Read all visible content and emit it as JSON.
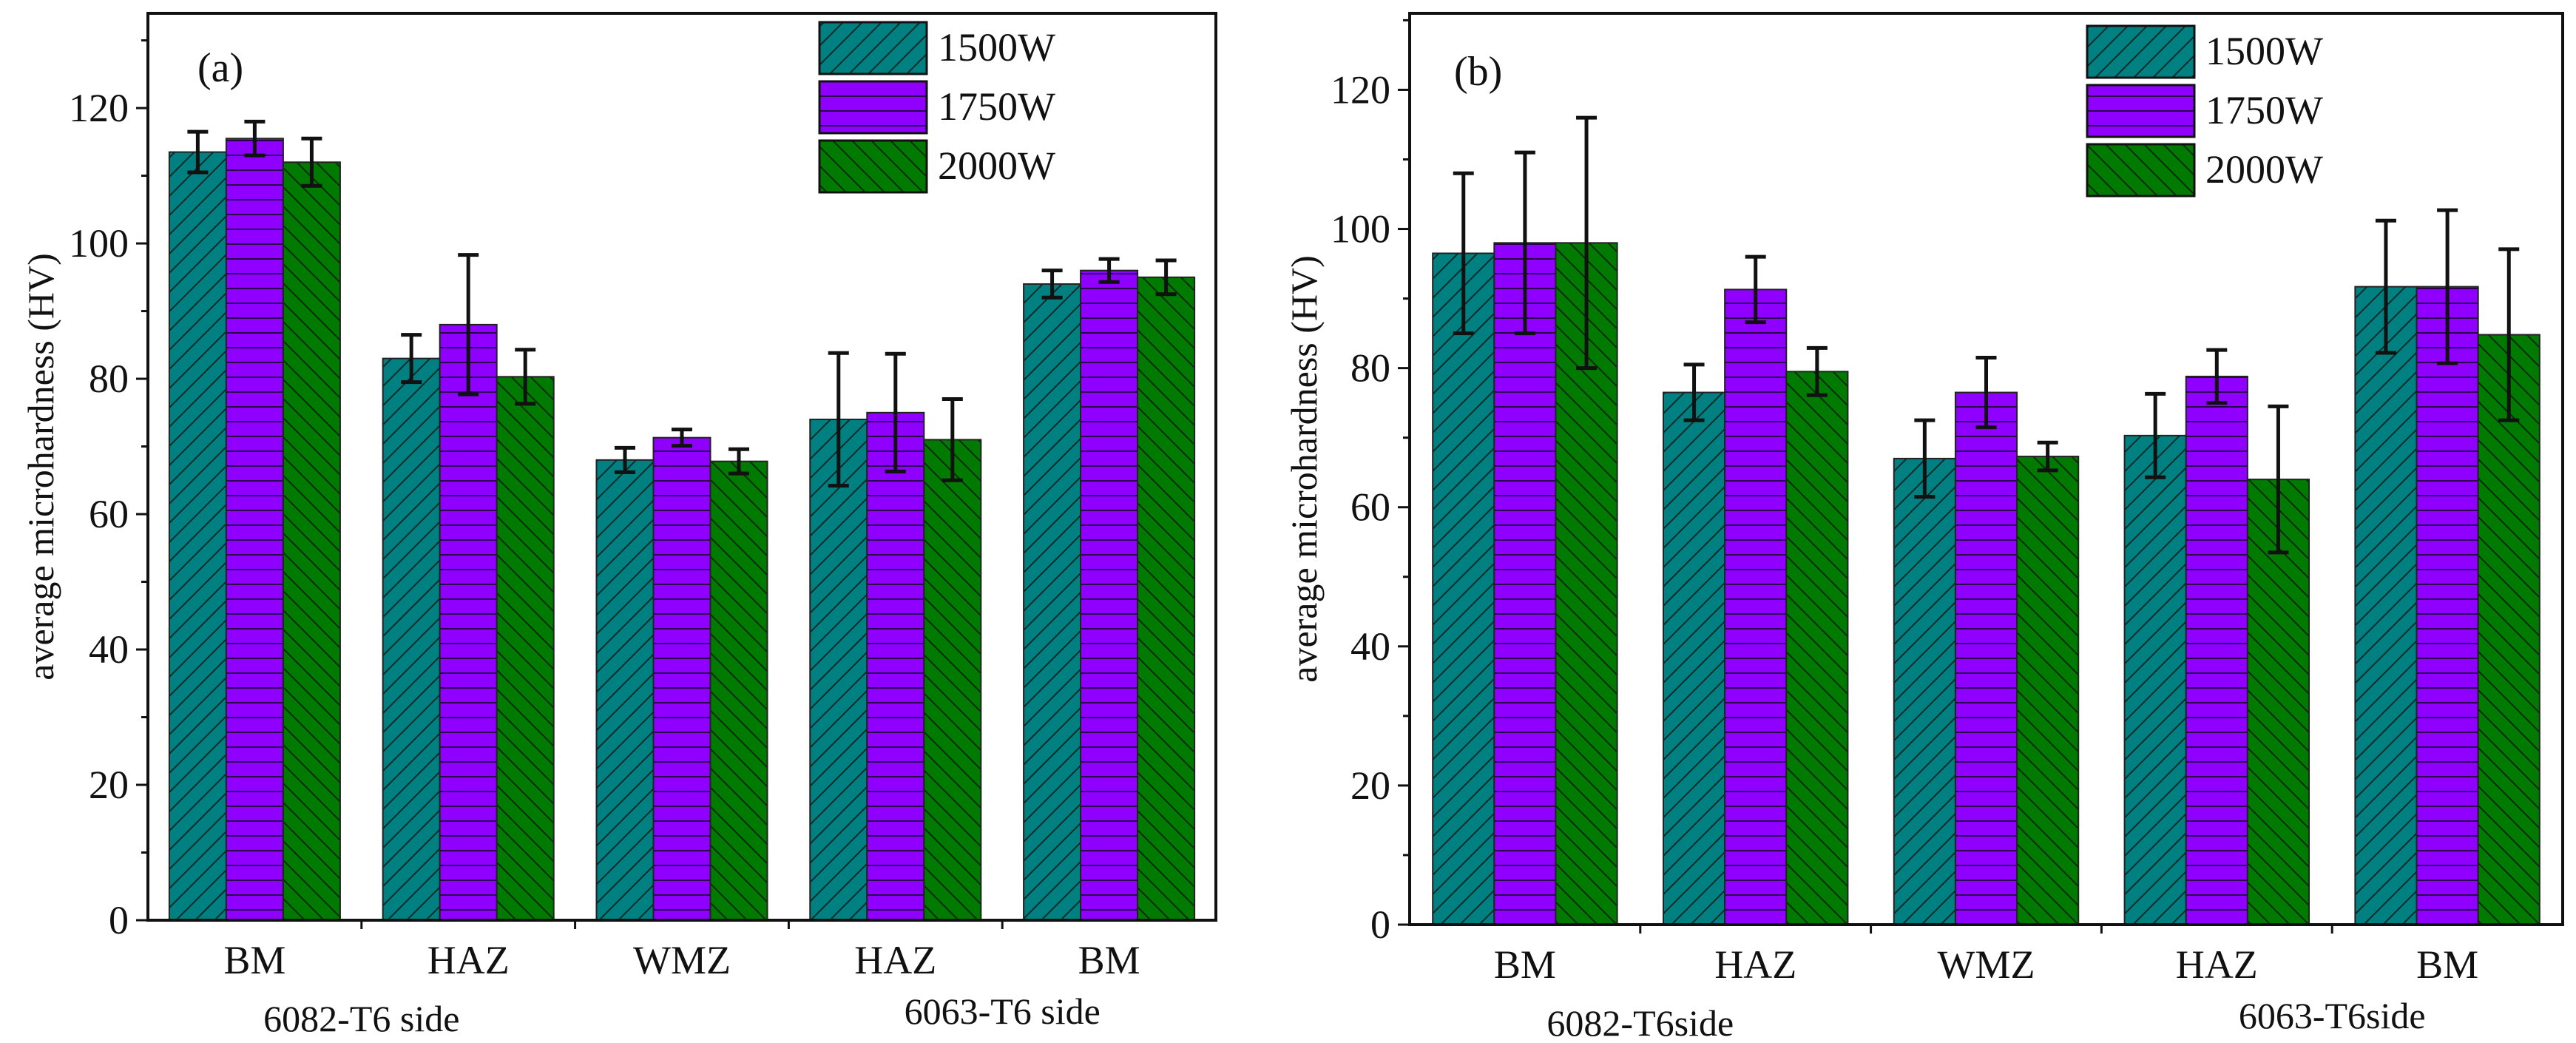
{
  "chart_data": [
    {
      "type": "bar",
      "panel_label": "(a)",
      "ylabel": "average microhardness (HV)",
      "ylim": [
        0,
        134
      ],
      "yticks": [
        0,
        20,
        40,
        60,
        80,
        100,
        120
      ],
      "categories": [
        "BM",
        "HAZ",
        "WMZ",
        "HAZ",
        "BM"
      ],
      "side_labels": [
        "6082-T6 side",
        "6063-T6 side"
      ],
      "legend_position": "top-right",
      "series": [
        {
          "name": "1500W",
          "color": "#008080",
          "hatch": "forward-diagonal",
          "values": [
            113.5,
            83.0,
            68.0,
            74.0,
            94.0
          ],
          "errors": [
            3.0,
            3.5,
            1.8,
            9.8,
            2.0
          ]
        },
        {
          "name": "1750W",
          "color": "#9000ff",
          "hatch": "horizontal",
          "values": [
            115.5,
            88.0,
            71.3,
            75.0,
            96.0
          ],
          "errors": [
            2.5,
            10.3,
            1.2,
            8.7,
            1.7
          ]
        },
        {
          "name": "2000W",
          "color": "#007a00",
          "hatch": "back-diagonal",
          "values": [
            112.0,
            80.3,
            67.8,
            71.0,
            95.0
          ],
          "errors": [
            3.5,
            4.0,
            1.8,
            6.0,
            2.5
          ]
        }
      ]
    },
    {
      "type": "bar",
      "panel_label": "(b)",
      "ylabel": "average microhardness (HV)",
      "ylim": [
        0,
        131
      ],
      "yticks": [
        0,
        20,
        40,
        60,
        80,
        100,
        120
      ],
      "categories": [
        "BM",
        "HAZ",
        "WMZ",
        "HAZ",
        "BM"
      ],
      "side_labels": [
        "6082-T6side",
        "6063-T6side"
      ],
      "legend_position": "top-right",
      "series": [
        {
          "name": "1500W",
          "color": "#008080",
          "hatch": "forward-diagonal",
          "values": [
            96.5,
            76.5,
            67.0,
            70.3,
            91.7
          ],
          "errors": [
            11.5,
            4.0,
            5.5,
            6.0,
            9.5
          ]
        },
        {
          "name": "1750W",
          "color": "#9000ff",
          "hatch": "horizontal",
          "values": [
            98.0,
            91.3,
            76.5,
            78.8,
            91.7
          ],
          "errors": [
            13.0,
            4.7,
            5.0,
            3.8,
            11.0
          ]
        },
        {
          "name": "2000W",
          "color": "#007a00",
          "hatch": "back-diagonal",
          "values": [
            98.0,
            79.5,
            67.3,
            64.0,
            84.8
          ],
          "errors": [
            18.0,
            3.4,
            2.0,
            10.5,
            12.3
          ]
        }
      ]
    }
  ]
}
